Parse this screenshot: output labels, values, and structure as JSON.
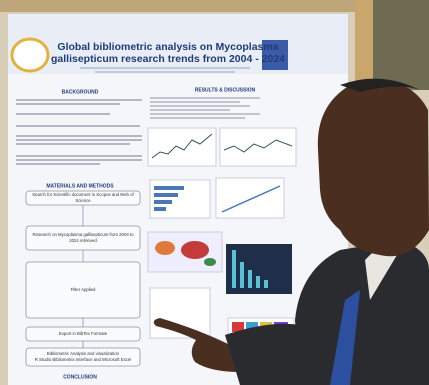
{
  "poster": {
    "title": [
      "Global bibliometric analysis on Mycoplasma",
      "gallisepticum research trends from 2004 - 2024"
    ],
    "sections": {
      "background": "BACKGROUND",
      "results": "RESULTS & DISCUSSION",
      "methods": "MATERIALS AND METHODS",
      "conclusion": "CONCLUSION"
    },
    "flow_steps": [
      [
        "Search for Scientific document in Scopus and Web of",
        "Science"
      ],
      [
        "Research on Mycoplasma gallisepticum from 2004 to",
        "2024 retrieved"
      ],
      [
        "Filter Applied"
      ],
      [
        "Export in BibTex Formate"
      ],
      [
        "Bibliometric Analysis and visualization",
        "R Studio Bibliometrix Interface and Microsoft Excel"
      ]
    ]
  }
}
